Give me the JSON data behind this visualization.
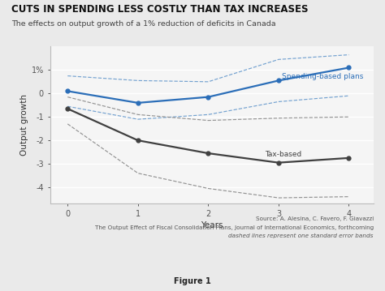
{
  "title": "CUTS IN SPENDING LESS COSTLY THAN TAX INCREASES",
  "subtitle": "The effects on output growth of a 1% reduction of deficits in Canada",
  "xlabel": "Years",
  "ylabel": "Output growth",
  "years": [
    0,
    1,
    2,
    3,
    4
  ],
  "spending_main": [
    0.1,
    -0.4,
    -0.15,
    0.55,
    1.1
  ],
  "spending_upper": [
    0.75,
    0.55,
    0.5,
    1.45,
    1.65
  ],
  "spending_lower": [
    -0.55,
    -1.1,
    -0.9,
    -0.35,
    -0.1
  ],
  "tax_main": [
    -0.65,
    -2.0,
    -2.55,
    -2.95,
    -2.75
  ],
  "tax_upper": [
    -0.15,
    -0.9,
    -1.15,
    -1.05,
    -1.0
  ],
  "tax_lower": [
    -1.3,
    -3.4,
    -4.05,
    -4.45,
    -4.4
  ],
  "spending_color": "#2B6EB8",
  "tax_color": "#404040",
  "spending_dash_color": "#6699CC",
  "tax_dash_color": "#888888",
  "spending_label": "Spending-based plans",
  "tax_label": "Tax-based",
  "ylim": [
    -4.7,
    2.0
  ],
  "yticks": [
    1,
    0,
    -1,
    -2,
    -3,
    -4
  ],
  "ytick_labels": [
    "1%",
    "0",
    "-1",
    "-2",
    "-3",
    "-4"
  ],
  "source_line1": "Source: A. Alesina, C. Favero, F. Giavazzi",
  "source_line2": "The Output Effect of Fiscal Consolidation Plans, Journal of International Economics, forthcoming",
  "source_line3": "dashed lines represent one standard error bands",
  "figure_label": "Figure 1",
  "outer_bg": "#EAEAEA",
  "plot_bg": "#F5F5F5"
}
